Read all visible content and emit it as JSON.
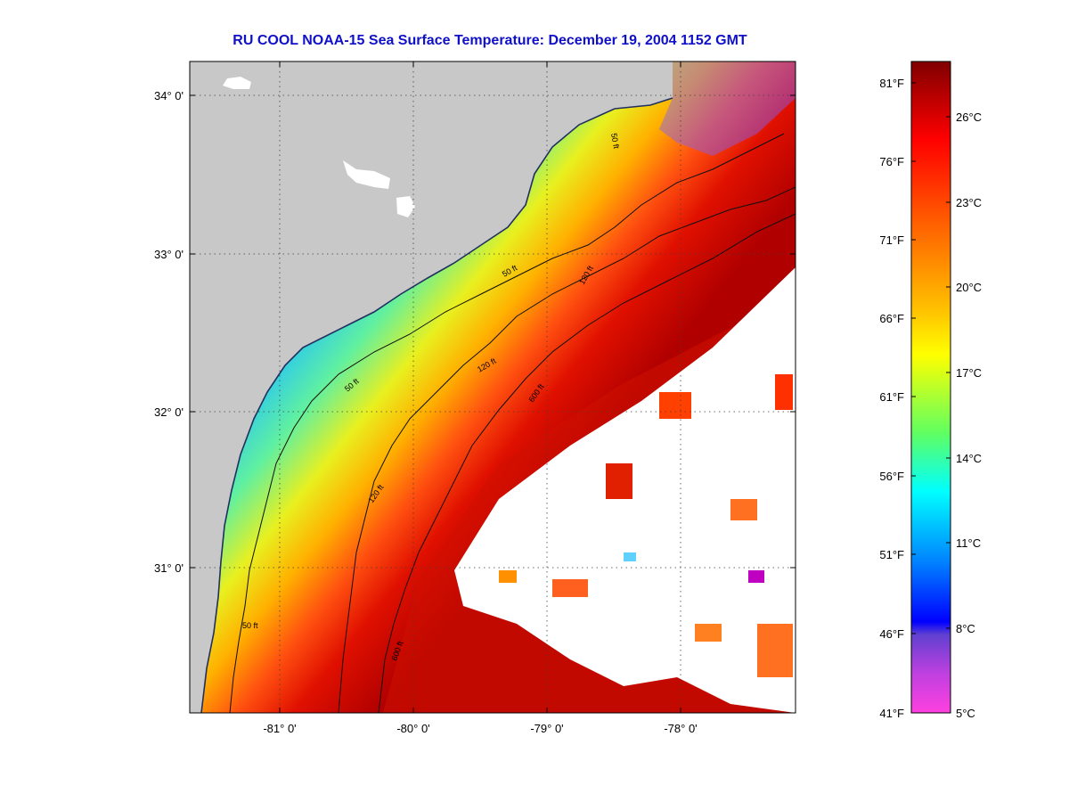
{
  "title": "RU COOL  NOAA-15  Sea Surface Temperature:  December 19, 2004 1152 GMT",
  "map": {
    "lat_labels": [
      "34° 0'",
      "33° 0'",
      "32° 0'",
      "31° 0'"
    ],
    "lon_labels": [
      "-81° 0'",
      "-80° 0'",
      "-79° 0'",
      "-78° 0'"
    ],
    "isobath_labels": [
      "50 ft",
      "120 ft",
      "600 ft"
    ]
  },
  "colorbar": {
    "fahrenheit_labels": [
      "81°F",
      "76°F",
      "71°F",
      "66°F",
      "61°F",
      "56°F",
      "51°F",
      "46°F",
      "41°F"
    ],
    "celsius_labels": [
      "26°C",
      "23°C",
      "20°C",
      "17°C",
      "14°C",
      "11°C",
      "8°C",
      "5°C"
    ],
    "colors": {
      "dark_red": "#800000",
      "red": "#ff0000",
      "orange": "#ff8000",
      "yellow": "#ffff00",
      "green": "#40ff80",
      "cyan": "#00ffff",
      "blue": "#0000ff",
      "purple": "#8040c0",
      "magenta": "#ff40e0"
    }
  },
  "colors": {
    "land": "#c8c8c8",
    "clouds": "#ffffff",
    "title": "#1010c8"
  }
}
